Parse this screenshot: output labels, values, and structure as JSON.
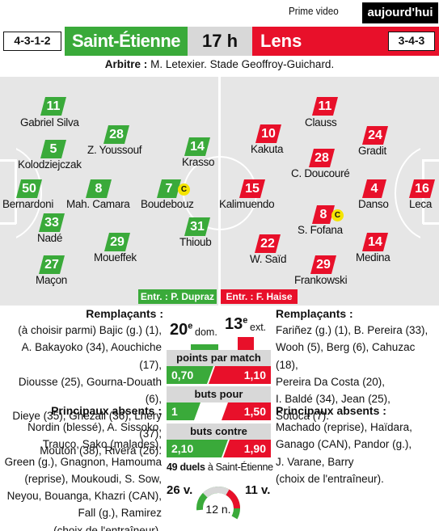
{
  "header": {
    "broadcaster": "Prime video",
    "badge": "aujourd'hui"
  },
  "match": {
    "home_formation": "4-3-1-2",
    "home_team": "Saint-Étienne",
    "kickoff": "17 h",
    "away_team": "Lens",
    "away_formation": "3-4-3",
    "referee_label": "Arbitre :",
    "referee_text": "M. Letexier. Stade Geoffroy-Guichard."
  },
  "home_players": [
    {
      "number": "11",
      "name": "Gabriel Silva"
    },
    {
      "number": "28",
      "name": "Z. Youssouf"
    },
    {
      "number": "5",
      "name": "Kolodziejczak"
    },
    {
      "number": "14",
      "name": "Krasso"
    },
    {
      "number": "50",
      "name": "Bernardoni"
    },
    {
      "number": "8",
      "name": "Mah. Camara"
    },
    {
      "number": "7",
      "name": "Boudebouz",
      "captain": "C"
    },
    {
      "number": "33",
      "name": "Nadé"
    },
    {
      "number": "31",
      "name": "Thioub"
    },
    {
      "number": "29",
      "name": "Moueffek"
    },
    {
      "number": "27",
      "name": "Maçon"
    }
  ],
  "away_players": [
    {
      "number": "11",
      "name": "Clauss"
    },
    {
      "number": "10",
      "name": "Kakuta"
    },
    {
      "number": "24",
      "name": "Gradit"
    },
    {
      "number": "28",
      "name": "C. Doucouré"
    },
    {
      "number": "15",
      "name": "Kalimuendo"
    },
    {
      "number": "4",
      "name": "Danso"
    },
    {
      "number": "16",
      "name": "Leca"
    },
    {
      "number": "8",
      "name": "S. Fofana",
      "captain": "C"
    },
    {
      "number": "22",
      "name": "W. Saïd"
    },
    {
      "number": "14",
      "name": "Medina"
    },
    {
      "number": "29",
      "name": "Frankowski"
    }
  ],
  "coaches": {
    "home": "Entr. : P. Dupraz",
    "away": "Entr. : F. Haise"
  },
  "home_bench": {
    "subs_title": "Remplaçants :",
    "subs_lines": [
      "(à choisir parmi) Bajic (g.) (1),",
      "A. Bakayoko (34), Aouchiche (17),",
      "Diousse (25), Gourna-Douath (6),",
      "Dieye (35), Ghezali (36), Lhéry (37),",
      "Mouton (38), Rivera (26)."
    ],
    "absents_title": "Principaux absents :",
    "absents_lines": [
      "Nordin (blessé), A. Sissoko,",
      "Trauco, Sako (malades),",
      "Green (g.), Gnagnon, Hamouma",
      "(reprise), Moukoudi, S. Sow,",
      "Neyou, Bouanga, Khazri (CAN),",
      "Fall (g.), Ramirez",
      "(choix de l'entraîneur)."
    ]
  },
  "away_bench": {
    "subs_title": "Remplaçants :",
    "subs_lines": [
      "Fariñez (g.) (1), B. Pereira (33),",
      "Wooh (5), Berg (6), Cahuzac (18),",
      "Pereira Da Costa (20),",
      "I. Baldé (34), Jean (25),",
      "Sotoca (7)."
    ],
    "absents_title": "Principaux absents :",
    "absents_lines": [
      "Machado (reprise), Haïdara,",
      "Ganago (CAN), Pandor (g.),",
      "J. Varane, Barry",
      "(choix de l'entraîneur)."
    ]
  },
  "stats": {
    "home_rank": "20",
    "home_rank_sup": "e",
    "home_rank_label": "dom.",
    "away_rank": "13",
    "away_rank_sup": "e",
    "away_rank_label": "ext.",
    "points_label": "points par match",
    "points_home": "0,70",
    "points_away": "1,10",
    "scored_label": "buts pour",
    "scored_home": "1",
    "scored_away": "1,50",
    "conceded_label": "buts contre",
    "conceded_home": "2,10",
    "conceded_away": "1,90",
    "duels_count": "49 duels",
    "duels_venue": "à Saint-Étienne",
    "home_wins": "26 v.",
    "draws": "12 n.",
    "away_wins": "11 v."
  },
  "colors": {
    "home": "#3aaa3a",
    "away": "#e8102a",
    "pitch": "#e6e6e6",
    "grey": "#d8d8d8"
  }
}
